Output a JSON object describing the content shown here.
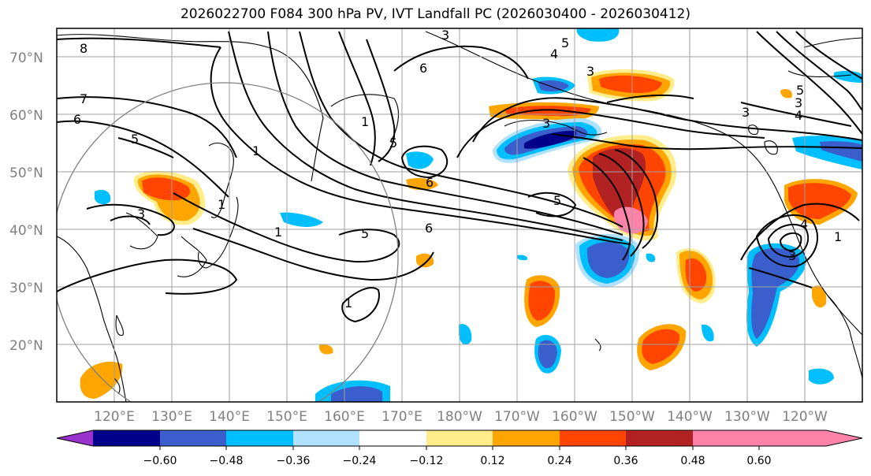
{
  "title": "2026022700 F084 300 hPa PV, IVT Landfall PC (2026030400 - 2026030412)",
  "lat_labels": [
    "70°N",
    "60°N",
    "50°N",
    "40°N",
    "30°N",
    "20°N"
  ],
  "lon_labels": [
    "120°E",
    "130°E",
    "140°E",
    "150°E",
    "160°E",
    "170°E",
    "180°W",
    "170°W",
    "160°W",
    "150°W",
    "140°W",
    "130°W",
    "120°W"
  ],
  "colorbar": {
    "ticks": [
      "−0.60",
      "−0.48",
      "−0.36",
      "−0.24",
      "−0.12",
      "0.12",
      "0.24",
      "0.36",
      "0.48",
      "0.60"
    ],
    "colors": [
      "#9932cc",
      "#00008b",
      "#3a5fcd",
      "#00bfff",
      "#b0e2ff",
      "#ffffff",
      "#ffec8b",
      "#ffa500",
      "#ff4500",
      "#b22222",
      "#ff82ab"
    ]
  },
  "contour_labels": [
    "8",
    "7",
    "6",
    "5",
    "3",
    "6",
    "5",
    "4",
    "3",
    "1",
    "3",
    "1",
    "5",
    "6",
    "5",
    "1",
    "3",
    "6",
    "5",
    "3",
    "4",
    "1",
    "4",
    "3",
    "3",
    "1",
    "5",
    "1"
  ]
}
